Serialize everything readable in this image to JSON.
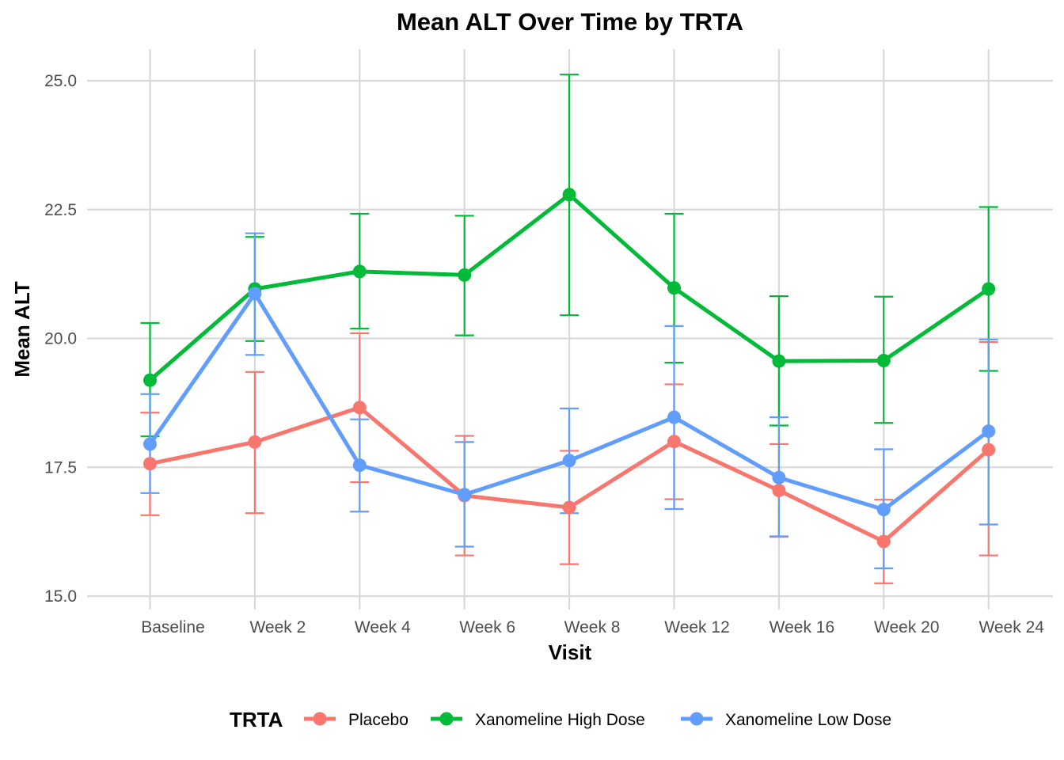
{
  "chart_data": {
    "type": "line",
    "title": "Mean ALT Over Time by TRTA",
    "xlabel": "Visit",
    "ylabel": "Mean ALT",
    "categories": [
      "Baseline",
      "Week 2",
      "Week 4",
      "Week 6",
      "Week 8",
      "Week 12",
      "Week 16",
      "Week 20",
      "Week 24"
    ],
    "ylim": [
      14.5,
      25.6
    ],
    "yticks": [
      15.0,
      17.5,
      20.0,
      22.5,
      25.0
    ],
    "ytick_labels": [
      "15.0",
      "17.5",
      "20.0",
      "22.5",
      "25.0"
    ],
    "grid": true,
    "error_bars": true,
    "legend": {
      "title": "TRTA",
      "position": "bottom"
    },
    "series": [
      {
        "name": "Placebo",
        "color": "#F8766D",
        "values": [
          17.57,
          17.99,
          18.66,
          16.95,
          16.72,
          18.0,
          17.05,
          16.06,
          17.84
        ],
        "upper": [
          18.56,
          19.35,
          20.1,
          18.11,
          17.82,
          19.11,
          17.95,
          16.87,
          19.93
        ],
        "lower": [
          16.57,
          16.61,
          17.21,
          15.79,
          15.62,
          16.88,
          16.15,
          15.25,
          15.79
        ]
      },
      {
        "name": "Xanomeline High Dose",
        "color": "#00BA38",
        "values": [
          19.19,
          20.96,
          21.3,
          21.23,
          22.79,
          20.98,
          19.56,
          19.57,
          20.96
        ],
        "upper": [
          20.3,
          21.97,
          22.42,
          22.38,
          25.12,
          22.42,
          20.82,
          20.81,
          22.55
        ],
        "lower": [
          18.1,
          19.95,
          20.19,
          20.06,
          20.45,
          19.53,
          18.31,
          18.36,
          19.37
        ]
      },
      {
        "name": "Xanomeline Low Dose",
        "color": "#619CFF",
        "values": [
          17.95,
          20.87,
          17.54,
          16.97,
          17.63,
          18.47,
          17.3,
          16.68,
          18.2
        ],
        "upper": [
          18.92,
          22.04,
          18.43,
          17.99,
          18.64,
          20.24,
          18.47,
          17.85,
          19.98
        ],
        "lower": [
          17.0,
          19.68,
          16.64,
          15.96,
          16.61,
          16.69,
          16.16,
          15.54,
          16.39
        ]
      }
    ]
  }
}
